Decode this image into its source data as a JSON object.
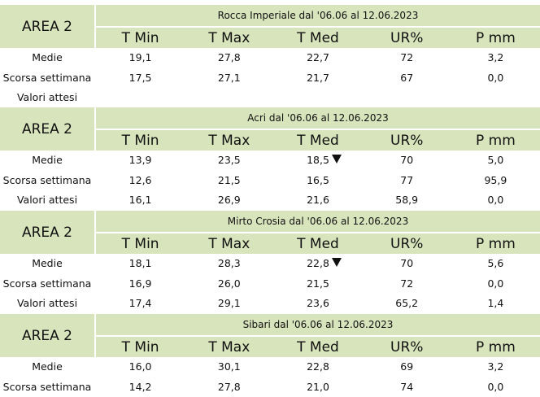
{
  "headers": [
    "T Min",
    "T Max",
    "T Med",
    "UR%",
    "P mm"
  ],
  "blocks": [
    {
      "area": "AREA 2",
      "title": "Rocca Imperiale  dal '06.06 al 12.06.2023",
      "rows": [
        {
          "label": "Medie",
          "values": [
            "19,1",
            "27,8",
            "22,7",
            "72",
            "3,2"
          ]
        },
        {
          "label": "Scorsa settimana",
          "values": [
            "17,5",
            "27,1",
            "21,7",
            "67",
            "0,0"
          ]
        },
        {
          "label": "Valori attesi",
          "values": [
            "",
            "",
            "",
            "",
            ""
          ]
        }
      ]
    },
    {
      "area": "AREA 2",
      "title": "Acri dal '06.06 al 12.06.2023",
      "rows": [
        {
          "label": "Medie",
          "values": [
            "13,9",
            "23,5",
            "18,5",
            "70",
            "5,0"
          ],
          "down_arrow": true
        },
        {
          "label": "Scorsa settimana",
          "values": [
            "12,6",
            "21,5",
            "16,5",
            "77",
            "95,9"
          ]
        },
        {
          "label": "Valori attesi",
          "values": [
            "16,1",
            "26,9",
            "21,6",
            "58,9",
            "0,0"
          ]
        }
      ]
    },
    {
      "area": "AREA 2",
      "title": "Mirto Crosia dal '06.06 al 12.06.2023",
      "rows": [
        {
          "label": "Medie",
          "values": [
            "18,1",
            "28,3",
            "22,8",
            "70",
            "5,6"
          ],
          "down_arrow": true
        },
        {
          "label": "Scorsa settimana",
          "values": [
            "16,9",
            "26,0",
            "21,5",
            "72",
            "0,0"
          ]
        },
        {
          "label": "Valori attesi",
          "values": [
            "17,4",
            "29,1",
            "23,6",
            "65,2",
            "1,4"
          ]
        }
      ]
    },
    {
      "area": "AREA 2",
      "title": "Sibari dal '06.06 al 12.06.2023",
      "rows": [
        {
          "label": "Medie",
          "values": [
            "16,0",
            "30,1",
            "22,8",
            "69",
            "3,2"
          ]
        },
        {
          "label": "Scorsa settimana",
          "values": [
            "14,2",
            "27,8",
            "21,0",
            "74",
            "0,0"
          ]
        }
      ]
    }
  ]
}
